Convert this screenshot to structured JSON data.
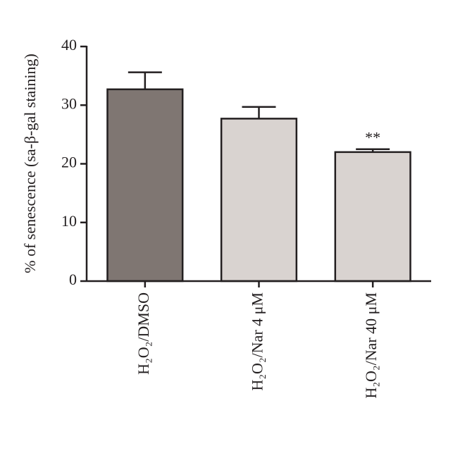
{
  "chart_data": {
    "type": "bar",
    "y_label": "% of senescence (sa-β-gal staining)",
    "categories": [
      "H₂O₂/DMSO",
      "H₂O₂/Nar 4 μM",
      "H₂O₂/Nar 40 μM"
    ],
    "values": [
      32.7,
      27.7,
      22.0
    ],
    "errors": [
      2.9,
      2.0,
      0.5
    ],
    "colors": [
      "#7f7672",
      "#d9d3d0",
      "#d9d3d0"
    ],
    "annotations": [
      null,
      null,
      "**"
    ],
    "ylim": [
      0,
      40
    ],
    "yticks": [
      0,
      10,
      20,
      30,
      40
    ],
    "grid": false
  }
}
